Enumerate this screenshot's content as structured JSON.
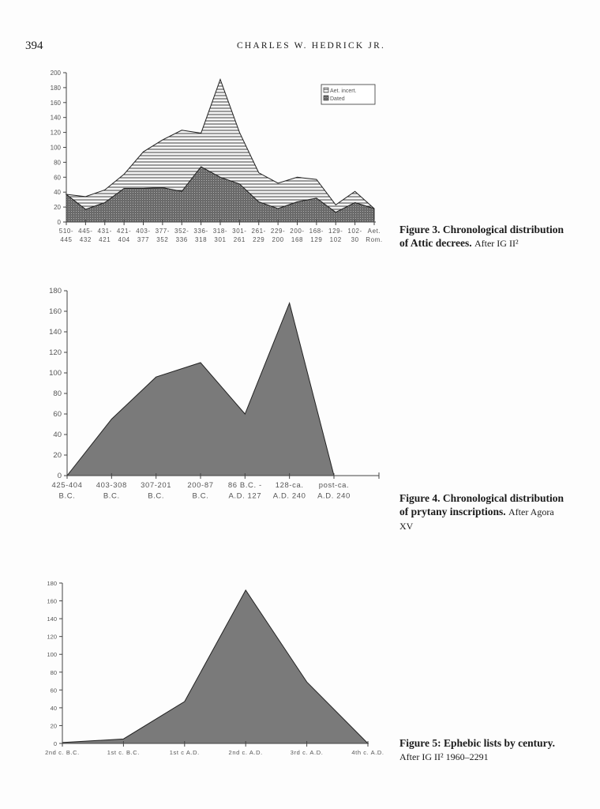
{
  "header": {
    "page_number": "394",
    "running_head": "CHARLES W. HEDRICK JR."
  },
  "figures": [
    {
      "caption_bold": "Figure 3. Chronological distribution of Attic decrees.",
      "caption_source": "After IG II²"
    },
    {
      "caption_bold": "Figure 4. Chronological distribution of prytany inscriptions.",
      "caption_source": "After Agora XV"
    },
    {
      "caption_bold": "Figure 5: Ephebic lists by century.",
      "caption_source": "After IG II² 1960–2291"
    }
  ],
  "chart_data": [
    {
      "type": "area",
      "stacked": true,
      "categories": [
        "510-\n445",
        "445-\n432",
        "431-\n421",
        "421-\n404",
        "403-\n377",
        "377-\n352",
        "352-\n336",
        "336-\n318",
        "318-\n301",
        "301-\n261",
        "261-\n229",
        "229-\n200",
        "200-\n168",
        "168-\n129",
        "129-\n102",
        "102-\n30",
        "Aet.\nRom."
      ],
      "series": [
        {
          "name": "Dated",
          "values": [
            37,
            17,
            26,
            45,
            45,
            46,
            41,
            74,
            60,
            51,
            27,
            18,
            27,
            32,
            13,
            26,
            18
          ],
          "fill": "crosshatch-dark"
        },
        {
          "name": "Aet. incert.",
          "values": [
            0,
            17,
            17,
            19,
            49,
            64,
            82,
            45,
            131,
            69,
            39,
            34,
            33,
            25,
            10,
            15,
            0
          ],
          "fill": "horizontal-lines"
        }
      ],
      "ylim": [
        0,
        200
      ],
      "yticks": [
        0,
        20,
        40,
        60,
        80,
        100,
        120,
        140,
        160,
        180,
        200
      ],
      "legend": "top-right",
      "grid": false
    },
    {
      "type": "area",
      "categories": [
        "425-404\nB.C.",
        "403-308\nB.C.",
        "307-201\nB.C.",
        "200-87\nB.C.",
        "86 B.C. -\nA.D. 127",
        "128-ca.\nA.D. 240",
        "post-ca.\nA.D. 240"
      ],
      "values": [
        0,
        55,
        96,
        110,
        60,
        168,
        0
      ],
      "ylim": [
        0,
        180
      ],
      "yticks": [
        0,
        20,
        40,
        60,
        80,
        100,
        120,
        140,
        160,
        180
      ],
      "grid": false,
      "color": "#7a7a7a"
    },
    {
      "type": "area",
      "categories": [
        "2nd c. B.C.",
        "1st c. B.C.",
        "1st c A.D.",
        "2nd c. A.D.",
        "3rd c. A.D.",
        "4th c. A.D."
      ],
      "values": [
        1,
        5,
        47,
        172,
        69,
        0
      ],
      "ylim": [
        0,
        180
      ],
      "yticks": [
        0,
        20,
        40,
        60,
        80,
        100,
        120,
        140,
        160,
        180
      ],
      "grid": false,
      "color": "#7a7a7a"
    }
  ]
}
